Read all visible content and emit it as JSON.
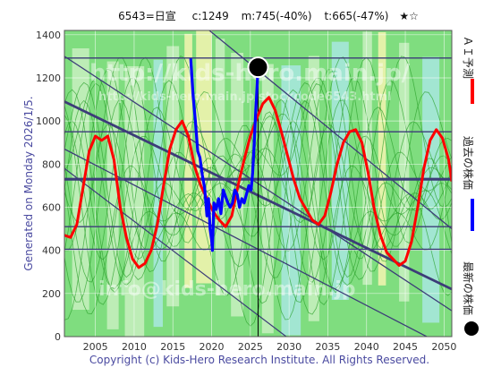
{
  "header": {
    "code_name": "6543=日宣",
    "current": "c:1249",
    "max_info": "m:745(-40%)",
    "target_info": "t:665(-47%)",
    "stars": "★☆"
  },
  "side_labels": {
    "generated": "Generated on Monday 2026/1/5.",
    "ai_forecast": "ＡＩ予測",
    "past_price": "過去の株価",
    "latest_price": "最新の株価"
  },
  "copyright": "Copyright (c) Kids-Hero Research Institute. All Rights Reserved.",
  "watermarks": {
    "w1": "http://kids-hero.main.jp/",
    "w2": "http://kids-hero.main.jp/stockcode6543.html",
    "w3": "info@kids-hero.main.jp"
  },
  "colors": {
    "forecast": "#ff0000",
    "past": "#0000ff",
    "latest": "#000000",
    "band_green": "#7fdd7f",
    "band_light": "#c8f0c0",
    "band_cyan": "#a8e8e0",
    "band_yellow": "#f4f4b0",
    "trend_line": "#3c3c78"
  },
  "chart_data": {
    "type": "line",
    "xlim": [
      2001,
      2051
    ],
    "ylim": [
      0,
      1420
    ],
    "x_ticks": [
      2005,
      2010,
      2015,
      2020,
      2025,
      2030,
      2035,
      2040,
      2045,
      2050
    ],
    "y_ticks": [
      0,
      200,
      400,
      600,
      800,
      1000,
      1200,
      1400
    ],
    "grid": true,
    "series": [
      {
        "name": "ＡＩ予測",
        "color": "#ff0000",
        "x": [
          2001,
          2001.8,
          2002.6,
          2003.4,
          2004.2,
          2005,
          2005.8,
          2006.6,
          2007.4,
          2008.2,
          2009,
          2009.8,
          2010.6,
          2011.4,
          2012.2,
          2013,
          2013.8,
          2014.6,
          2015.4,
          2016.2,
          2017,
          2017.8,
          2018.6,
          2019.4,
          2020.2,
          2021,
          2021.8,
          2022.6,
          2023.4,
          2024.2,
          2025,
          2025.8,
          2026.6,
          2027.4,
          2028.2,
          2029,
          2029.8,
          2030.6,
          2031.4,
          2032.2,
          2033,
          2033.8,
          2034.6,
          2035.4,
          2036.2,
          2037,
          2037.8,
          2038.6,
          2039.4,
          2040.2,
          2041,
          2041.8,
          2042.6,
          2043.4,
          2044.2,
          2045,
          2045.8,
          2046.6,
          2047.4,
          2048.2,
          2049,
          2049.8,
          2050.6,
          2051
        ],
        "y": [
          470,
          460,
          520,
          690,
          860,
          930,
          910,
          930,
          820,
          600,
          460,
          360,
          320,
          340,
          400,
          520,
          700,
          870,
          960,
          1000,
          930,
          790,
          700,
          640,
          580,
          540,
          510,
          560,
          700,
          820,
          930,
          1010,
          1080,
          1110,
          1050,
          950,
          840,
          730,
          640,
          590,
          540,
          520,
          560,
          670,
          800,
          900,
          950,
          960,
          900,
          760,
          590,
          470,
          390,
          360,
          330,
          350,
          440,
          600,
          780,
          910,
          960,
          920,
          820,
          720
        ]
      },
      {
        "name": "過去の株価",
        "color": "#0000ff",
        "x": [
          2017.3,
          2017.6,
          2017.9,
          2018.2,
          2018.5,
          2018.8,
          2019.1,
          2019.4,
          2019.6,
          2019.8,
          2020.0,
          2020.1,
          2020.3,
          2020.6,
          2020.9,
          2021.2,
          2021.5,
          2021.8,
          2022.1,
          2022.4,
          2022.7,
          2023.0,
          2023.3,
          2023.6,
          2023.9,
          2024.2,
          2024.5,
          2024.8,
          2025.1,
          2025.3,
          2025.5,
          2025.7,
          2025.9,
          2026.0
        ],
        "y": [
          1290,
          1120,
          1000,
          860,
          830,
          750,
          690,
          560,
          640,
          500,
          450,
          400,
          620,
          590,
          640,
          570,
          680,
          650,
          620,
          600,
          620,
          680,
          660,
          600,
          640,
          620,
          660,
          700,
          680,
          760,
          900,
          1050,
          1180,
          1250
        ]
      }
    ],
    "latest_point": {
      "x": 2026,
      "y": 1249,
      "label": "最新の株価"
    }
  }
}
